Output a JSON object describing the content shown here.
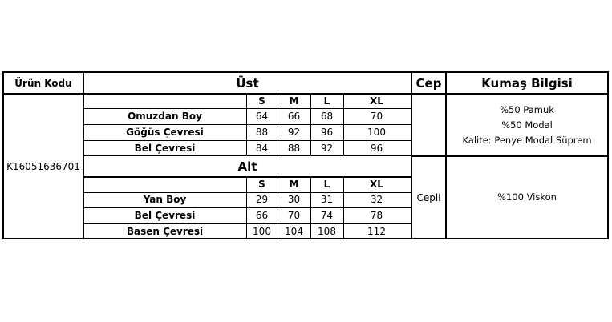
{
  "header": {
    "product_code": "Ürün Kodu",
    "top": "Üst",
    "pocket": "Cep",
    "fabric": "Kumaş Bilgisi"
  },
  "product_code_value": "K16051636701",
  "sizes": [
    "S",
    "M",
    "L",
    "XL"
  ],
  "top": {
    "rows": [
      {
        "label": "Omuzdan Boy",
        "values": [
          "64",
          "66",
          "68",
          "70"
        ]
      },
      {
        "label": "Göğüs Çevresi",
        "values": [
          "88",
          "92",
          "96",
          "100"
        ]
      },
      {
        "label": "Bel Çevresi",
        "values": [
          "84",
          "88",
          "92",
          "96"
        ]
      }
    ],
    "pocket": "",
    "fabric": [
      "%50 Pamuk",
      "%50 Modal",
      "Kalite: Penye Modal Süprem"
    ]
  },
  "bottom": {
    "title": "Alt",
    "rows": [
      {
        "label": "Yan Boy",
        "values": [
          "29",
          "30",
          "31",
          "32"
        ]
      },
      {
        "label": "Bel Çevresi",
        "values": [
          "66",
          "70",
          "74",
          "78"
        ]
      },
      {
        "label": "Basen Çevresi",
        "values": [
          "100",
          "104",
          "108",
          "112"
        ]
      }
    ],
    "pocket": "Cepli",
    "fabric": [
      "%100 Viskon"
    ]
  }
}
